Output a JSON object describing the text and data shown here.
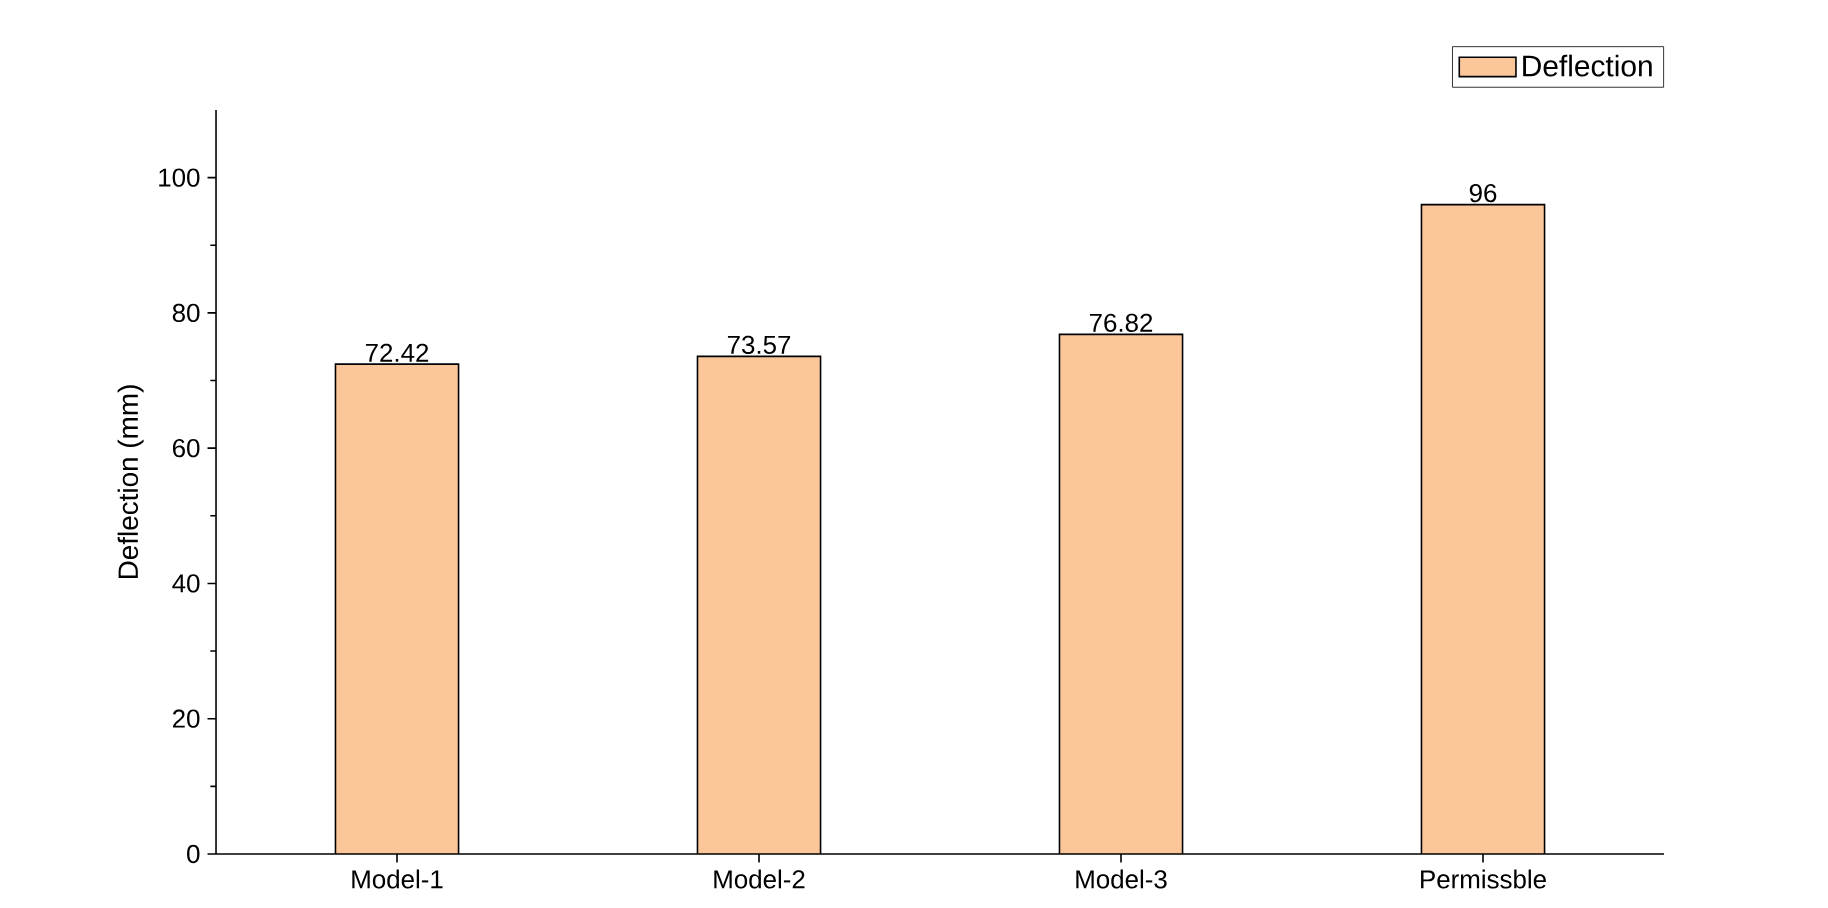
{
  "chart_data": {
    "type": "bar",
    "ylabel": "Deflection (mm)",
    "categories": [
      "Model-1",
      "Model-2",
      "Model-3",
      "Permissble"
    ],
    "series": [
      {
        "name": "Deflection",
        "color": "#fbc79a",
        "values": [
          72.42,
          73.57,
          76.82,
          96
        ]
      }
    ],
    "ylim": [
      0,
      110
    ],
    "yticks": [
      0,
      20,
      40,
      60,
      80,
      100
    ],
    "data_labels": true,
    "legend": "top right",
    "grid": false
  }
}
